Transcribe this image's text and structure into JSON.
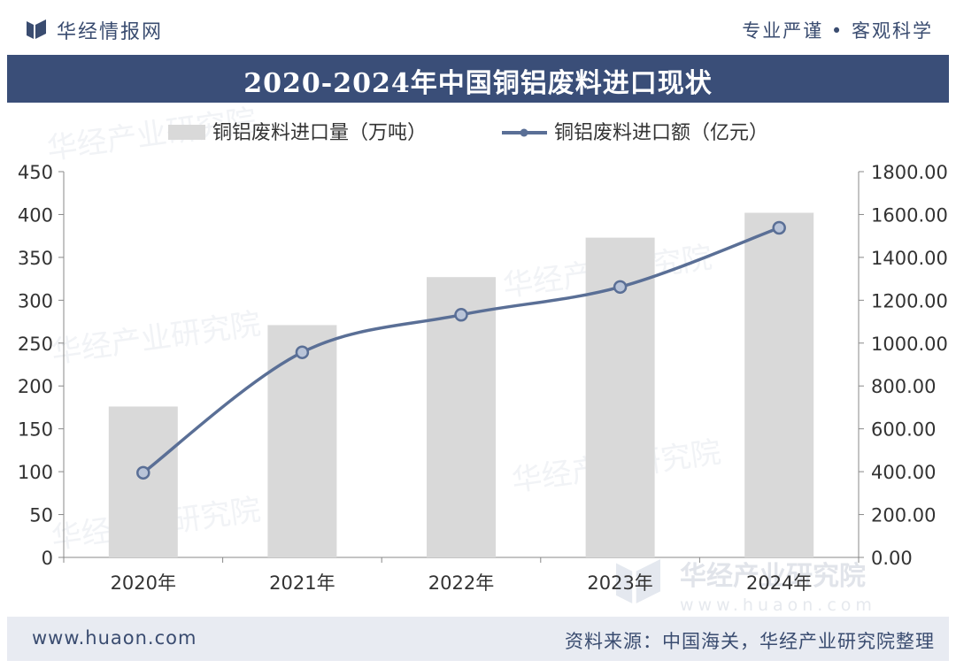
{
  "header": {
    "brand": "华经情报网",
    "slogan": "专业严谨 • 客观科学"
  },
  "chart_data": {
    "type": "bar",
    "title": "2020-2024年中国铜铝废料进口现状",
    "categories": [
      "2020年",
      "2021年",
      "2022年",
      "2023年",
      "2024年"
    ],
    "series": [
      {
        "name": "铜铝废料进口量（万吨）",
        "type": "bar",
        "axis": "left",
        "values": [
          176,
          271,
          327,
          373,
          402
        ]
      },
      {
        "name": "铜铝废料进口额（亿元）",
        "type": "line",
        "axis": "right",
        "values": [
          395,
          957,
          1132,
          1262,
          1538
        ]
      }
    ],
    "ylim": [
      0,
      450
    ],
    "y2lim": [
      0,
      1800
    ],
    "yticks": [
      "0",
      "50",
      "100",
      "150",
      "200",
      "250",
      "300",
      "350",
      "400",
      "450"
    ],
    "y2ticks": [
      "0.00",
      "200.00",
      "400.00",
      "600.00",
      "800.00",
      "1000.00",
      "1200.00",
      "1400.00",
      "1600.00",
      "1800.00"
    ],
    "grid": false,
    "legend_position": "top",
    "colors": {
      "bar": "#d9d9d9",
      "line": "#5a6f96",
      "marker_fill": "#b9c4d8"
    }
  },
  "watermark": {
    "name": "华经产业研究院",
    "url": "www.huaon.com"
  },
  "footer": {
    "url": "www.huaon.com",
    "source": "资料来源：中国海关，华经产业研究院整理"
  }
}
